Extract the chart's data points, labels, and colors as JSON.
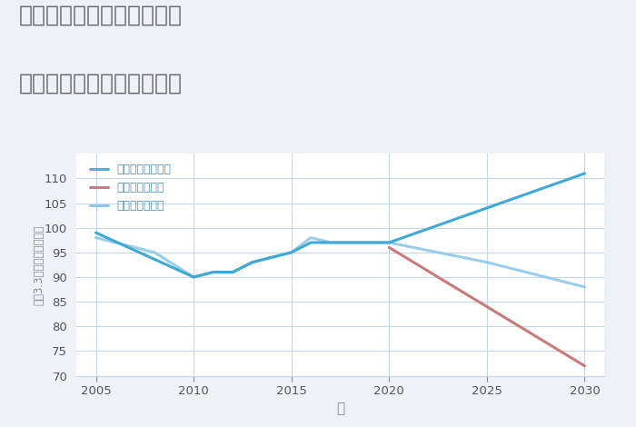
{
  "title_line1": "三重県伊賀市上野玄蕃町の",
  "title_line2": "中古マンションの価格推移",
  "xlabel": "年",
  "ylabel": "坪（3.3㎡）単価（万円）",
  "ylim": [
    70,
    115
  ],
  "yticks": [
    70,
    75,
    80,
    85,
    90,
    95,
    100,
    105,
    110
  ],
  "xlim": [
    2004,
    2031
  ],
  "xticks": [
    2005,
    2010,
    2015,
    2020,
    2025,
    2030
  ],
  "background_color": "#eef2f7",
  "plot_bg_color": "#ffffff",
  "good_scenario": {
    "x": [
      2005,
      2010,
      2011,
      2012,
      2013,
      2014,
      2015,
      2016,
      2017,
      2018,
      2019,
      2020,
      2025,
      2030
    ],
    "y": [
      99,
      90,
      91,
      91,
      93,
      94,
      95,
      97,
      97,
      97,
      97,
      97,
      104,
      111
    ],
    "color": "#3fa9d4",
    "label": "グッドシナリオ",
    "linewidth": 2.2
  },
  "bad_scenario": {
    "x": [
      2020,
      2030
    ],
    "y": [
      96,
      72
    ],
    "color": "#c97a7a",
    "label": "バッドシナリオ",
    "linewidth": 2.2
  },
  "normal_scenario": {
    "x": [
      2005,
      2008,
      2010,
      2011,
      2012,
      2013,
      2014,
      2015,
      2016,
      2017,
      2018,
      2019,
      2020,
      2025,
      2030
    ],
    "y": [
      98,
      95,
      90,
      91,
      91,
      93,
      94,
      95,
      98,
      97,
      97,
      97,
      97,
      93,
      88
    ],
    "color": "#8ec8e8",
    "label": "ノーマルシナリオ",
    "linewidth": 2.2,
    "alpha": 0.9
  },
  "grid_color": "#c5d8ea",
  "title_color": "#666666",
  "axis_color": "#888888",
  "legend_text_color": "#4a90b8",
  "tick_label_color": "#555555"
}
